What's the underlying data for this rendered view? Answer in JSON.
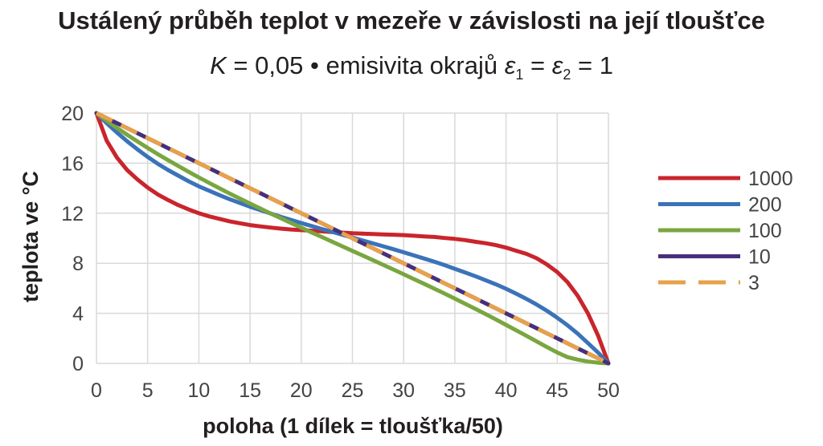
{
  "chart_data": {
    "type": "line",
    "title": "Ustálený průběh teplot v mezeře v závislosti na její tloušťce",
    "subtitle": {
      "k_symbol": "K",
      "k_text": " = 0,05 • emisivita okrajů ",
      "eps": "ε",
      "sub1": "1",
      "eq": " = ",
      "sub2": "2",
      "tail": " = 1"
    },
    "xlabel": "poloha (1 dílek = tloušťka/50)",
    "ylabel": "teplota ve °C",
    "xlim": [
      0,
      50
    ],
    "ylim": [
      0,
      20
    ],
    "xticks": [
      0,
      5,
      10,
      15,
      20,
      25,
      30,
      35,
      40,
      45,
      50
    ],
    "yticks": [
      0,
      4,
      8,
      12,
      16,
      20
    ],
    "grid": true,
    "legend_position": "right",
    "x": [
      0,
      1,
      2,
      3,
      4,
      5,
      6,
      7,
      8,
      9,
      10,
      11,
      12,
      13,
      14,
      15,
      16,
      17,
      18,
      19,
      20,
      21,
      22,
      23,
      24,
      25,
      26,
      27,
      28,
      29,
      30,
      31,
      32,
      33,
      34,
      35,
      36,
      37,
      38,
      39,
      40,
      41,
      42,
      43,
      44,
      45,
      46,
      47,
      48,
      49,
      50
    ],
    "series": [
      {
        "name": "1000",
        "color": "#c9252c",
        "dashed": false,
        "values": [
          20,
          17.8,
          16.45,
          15.45,
          14.7,
          14.05,
          13.5,
          13.05,
          12.65,
          12.3,
          12.0,
          11.75,
          11.55,
          11.35,
          11.2,
          11.05,
          10.95,
          10.85,
          10.77,
          10.7,
          10.65,
          10.6,
          10.55,
          10.5,
          10.45,
          10.4,
          10.37,
          10.34,
          10.31,
          10.28,
          10.25,
          10.2,
          10.15,
          10.1,
          10.02,
          9.95,
          9.85,
          9.72,
          9.6,
          9.45,
          9.25,
          9.0,
          8.75,
          8.4,
          7.9,
          7.3,
          6.5,
          5.4,
          4.0,
          2.2,
          0
        ]
      },
      {
        "name": "200",
        "color": "#3b73b9",
        "dashed": false,
        "values": [
          20,
          19.2,
          18.45,
          17.75,
          17.1,
          16.5,
          15.95,
          15.45,
          15.0,
          14.55,
          14.15,
          13.8,
          13.45,
          13.12,
          12.82,
          12.52,
          12.25,
          11.98,
          11.72,
          11.47,
          11.22,
          10.98,
          10.74,
          10.52,
          10.28,
          10.05,
          9.82,
          9.59,
          9.36,
          9.12,
          8.88,
          8.63,
          8.38,
          8.12,
          7.85,
          7.56,
          7.27,
          6.97,
          6.65,
          6.32,
          5.96,
          5.57,
          5.15,
          4.7,
          4.2,
          3.65,
          3.05,
          2.38,
          1.62,
          0.85,
          0
        ]
      },
      {
        "name": "100",
        "color": "#7aa640",
        "dashed": false,
        "values": [
          20,
          19.4,
          18.82,
          18.27,
          17.74,
          17.22,
          16.72,
          16.24,
          15.77,
          15.31,
          14.86,
          14.43,
          14.0,
          13.58,
          13.17,
          12.77,
          12.38,
          11.98,
          11.6,
          11.22,
          10.85,
          10.47,
          10.1,
          9.73,
          9.36,
          8.99,
          8.62,
          8.25,
          7.88,
          7.5,
          7.12,
          6.74,
          6.36,
          5.97,
          5.58,
          5.18,
          4.77,
          4.36,
          3.94,
          3.51,
          3.08,
          2.64,
          2.2,
          1.75,
          1.3,
          0.87,
          0.5,
          0.3,
          0.15,
          0.05,
          0
        ]
      },
      {
        "name": "10",
        "color": "#46307a",
        "dashed": false,
        "values": [
          20,
          19.6,
          19.2,
          18.8,
          18.4,
          18.0,
          17.6,
          17.2,
          16.8,
          16.4,
          16.0,
          15.6,
          15.2,
          14.8,
          14.4,
          14.0,
          13.6,
          13.2,
          12.8,
          12.4,
          12.0,
          11.6,
          11.2,
          10.8,
          10.4,
          10.0,
          9.6,
          9.2,
          8.8,
          8.4,
          8.0,
          7.6,
          7.2,
          6.8,
          6.4,
          6.0,
          5.6,
          5.2,
          4.8,
          4.4,
          4.0,
          3.6,
          3.2,
          2.8,
          2.4,
          2.0,
          1.6,
          1.2,
          0.8,
          0.4,
          0
        ]
      },
      {
        "name": "3",
        "color": "#e8a14a",
        "dashed": true,
        "values": [
          20,
          19.6,
          19.2,
          18.8,
          18.4,
          18.0,
          17.6,
          17.2,
          16.8,
          16.4,
          16.0,
          15.6,
          15.2,
          14.8,
          14.4,
          14.0,
          13.6,
          13.2,
          12.8,
          12.4,
          12.0,
          11.6,
          11.2,
          10.8,
          10.4,
          10.0,
          9.6,
          9.2,
          8.8,
          8.4,
          8.0,
          7.6,
          7.2,
          6.8,
          6.4,
          6.0,
          5.6,
          5.2,
          4.8,
          4.4,
          4.0,
          3.6,
          3.2,
          2.8,
          2.4,
          2.0,
          1.6,
          1.2,
          0.8,
          0.4,
          0
        ]
      }
    ]
  }
}
